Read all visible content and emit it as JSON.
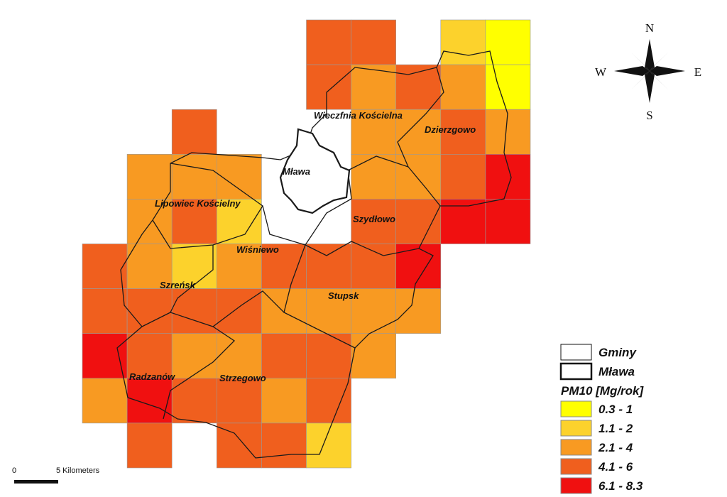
{
  "places": [
    "Wieczfnia Kościelna",
    "Dzierzgowo",
    "Mława",
    "Lipowiec Kościelny",
    "Szydłowo",
    "Wiśniewo",
    "Szreńsk",
    "Stupsk",
    "Radzanów",
    "Strzegowo"
  ],
  "compass": {
    "north": "N",
    "south": "S",
    "west": "W",
    "east": "E"
  },
  "scale_bar": {
    "start": "0",
    "end": "5 Kilometers"
  },
  "legend": {
    "boundaries": [
      "Gminy",
      "Mława"
    ],
    "title": "PM10 [Mg/rok]",
    "classes": [
      {
        "label": "0.3 - 1",
        "color": "#ffff00"
      },
      {
        "label": "1.1 - 2",
        "color": "#fcd22c"
      },
      {
        "label": "2.1 - 4",
        "color": "#f89a22"
      },
      {
        "label": "4.1 - 6",
        "color": "#f05f1e"
      },
      {
        "label": "6.1 - 8.3",
        "color": "#f01010"
      }
    ]
  },
  "grid_cells": [
    [
      0,
      5,
      3
    ],
    [
      0,
      6,
      3
    ],
    [
      0,
      8,
      1
    ],
    [
      0,
      9,
      0
    ],
    [
      1,
      5,
      3
    ],
    [
      1,
      6,
      2
    ],
    [
      1,
      7,
      3
    ],
    [
      1,
      8,
      2
    ],
    [
      1,
      9,
      0
    ],
    [
      2,
      2,
      3
    ],
    [
      2,
      6,
      2
    ],
    [
      2,
      7,
      2
    ],
    [
      2,
      8,
      3
    ],
    [
      2,
      9,
      2
    ],
    [
      3,
      1,
      2
    ],
    [
      3,
      2,
      2
    ],
    [
      3,
      3,
      2
    ],
    [
      3,
      6,
      2
    ],
    [
      3,
      7,
      2
    ],
    [
      3,
      8,
      3
    ],
    [
      3,
      9,
      4
    ],
    [
      4,
      1,
      2
    ],
    [
      4,
      2,
      3
    ],
    [
      4,
      3,
      1
    ],
    [
      4,
      6,
      3
    ],
    [
      4,
      7,
      3
    ],
    [
      4,
      8,
      4
    ],
    [
      4,
      9,
      4
    ],
    [
      5,
      0,
      3
    ],
    [
      5,
      1,
      2
    ],
    [
      5,
      2,
      1
    ],
    [
      5,
      3,
      2
    ],
    [
      5,
      4,
      3
    ],
    [
      5,
      5,
      3
    ],
    [
      5,
      6,
      3
    ],
    [
      5,
      7,
      4
    ],
    [
      6,
      0,
      3
    ],
    [
      6,
      1,
      3
    ],
    [
      6,
      2,
      3
    ],
    [
      6,
      3,
      3
    ],
    [
      6,
      4,
      2
    ],
    [
      6,
      5,
      2
    ],
    [
      6,
      6,
      2
    ],
    [
      6,
      7,
      2
    ],
    [
      7,
      0,
      4
    ],
    [
      7,
      1,
      3
    ],
    [
      7,
      2,
      2
    ],
    [
      7,
      3,
      2
    ],
    [
      7,
      4,
      3
    ],
    [
      7,
      5,
      3
    ],
    [
      7,
      6,
      2
    ],
    [
      8,
      0,
      2
    ],
    [
      8,
      1,
      4
    ],
    [
      8,
      2,
      3
    ],
    [
      8,
      3,
      3
    ],
    [
      8,
      4,
      2
    ],
    [
      8,
      5,
      3
    ],
    [
      9,
      1,
      3
    ],
    [
      9,
      3,
      3
    ],
    [
      9,
      4,
      3
    ],
    [
      9,
      5,
      1
    ]
  ]
}
